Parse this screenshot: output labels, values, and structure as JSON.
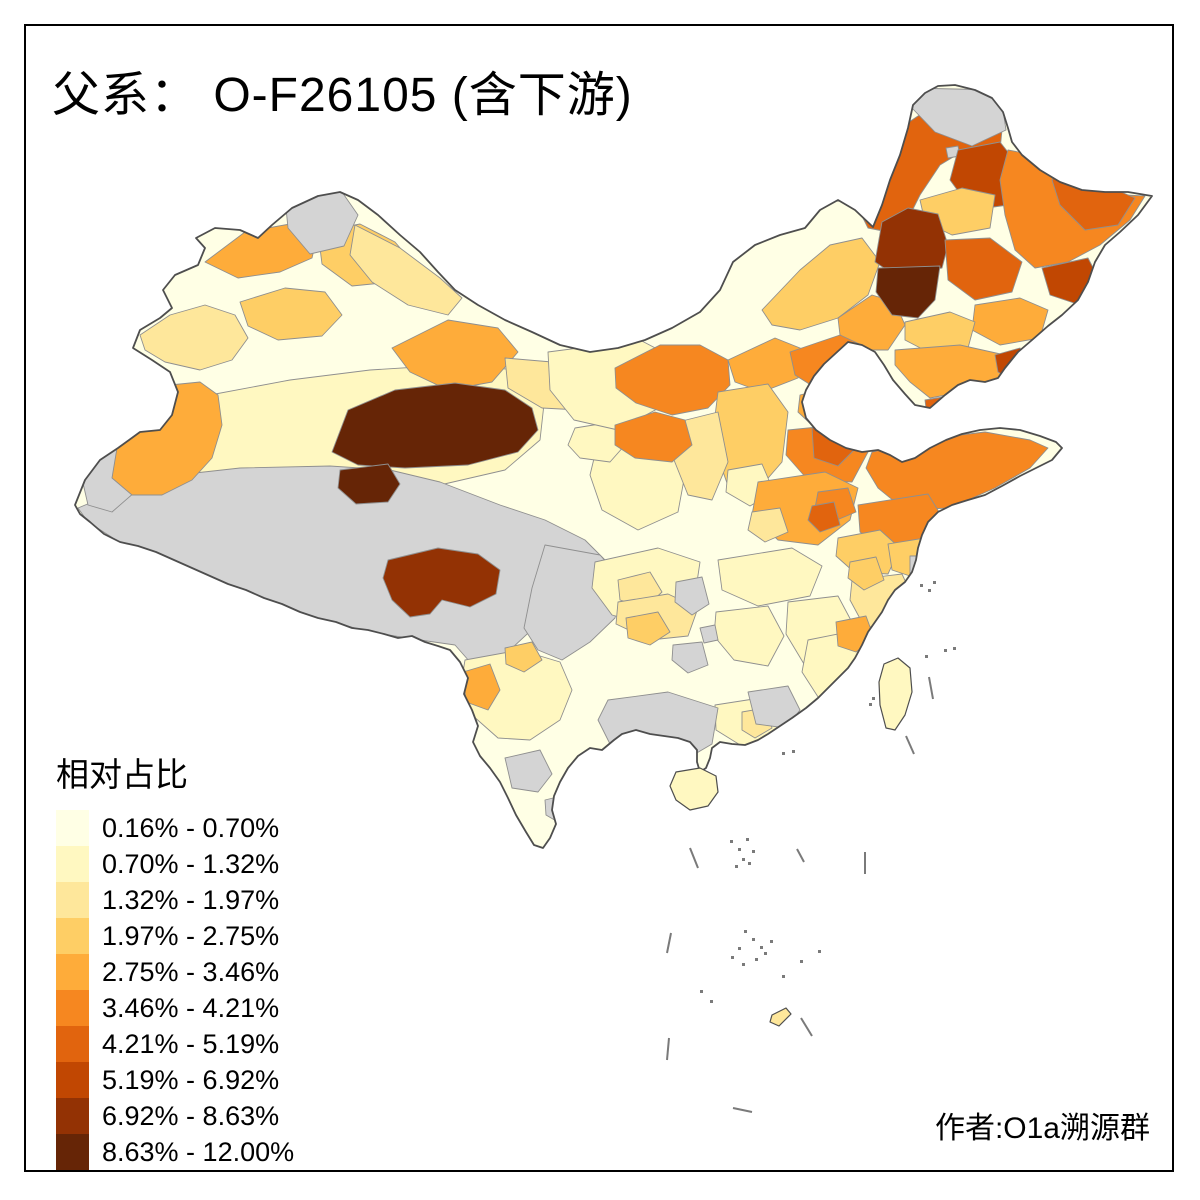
{
  "title": "父系： O-F26105 (含下游)",
  "attribution": "作者:O1a溯源群",
  "legend": {
    "title": "相对占比",
    "classes": [
      {
        "label": "0.16% - 0.70%",
        "color": "#FFFFE5"
      },
      {
        "label": "0.70% - 1.32%",
        "color": "#FFF8C1"
      },
      {
        "label": "1.32% - 1.97%",
        "color": "#FEE79B"
      },
      {
        "label": "1.97% - 2.75%",
        "color": "#FECE65"
      },
      {
        "label": "2.75% - 3.46%",
        "color": "#FEAC3A"
      },
      {
        "label": "3.46% - 4.21%",
        "color": "#F68720"
      },
      {
        "label": "4.21% - 5.19%",
        "color": "#E1640E"
      },
      {
        "label": "5.19% - 6.92%",
        "color": "#C14702"
      },
      {
        "label": "6.92% - 8.63%",
        "color": "#933204"
      },
      {
        "label": "8.63% - 12.00%",
        "color": "#662506"
      }
    ]
  },
  "map": {
    "nodata_color": "#D4D4D4",
    "region_border_color": "#8F8F8F",
    "outline_color": "#4E4E4E",
    "dash_color": "#7A7A7A",
    "sea_color": "#FFFFFF",
    "regions": {
      "china-base": 1,
      "tarim-basin": 2,
      "plateau-tibet-qinghai": 0,
      "west-sichuan": 0,
      "kashgar-west": 0,
      "hotan-kashgar": 5,
      "ili-valley": 3,
      "urumqi-changji": 4,
      "altay-west": 5,
      "altay-east": 4,
      "xinjiang-mongolia-border": 3,
      "altay-north-notch": 0,
      "jiuquan": 5,
      "gansu-corridor": 3,
      "gansu-east": 2,
      "xining-area": 2,
      "haixi": 10,
      "golog-blob": 10,
      "lhasa-shannan": 9,
      "alxa": 2,
      "ordos-bayannur": 6,
      "hohhot-ulanqab": 5,
      "xilingol": 4,
      "chifeng": 5,
      "hulunbuir": 7,
      "mohe-north": 0,
      "hulunbuir-spot": 0,
      "heihe": 8,
      "qiqihar-songnen": 4,
      "heilongjiang-east": 6,
      "heilongjiang-east-dark": 7,
      "xingan-dark": 9,
      "songyuan-dark": 10,
      "harbin": 7,
      "yanbian-dark": 8,
      "jilin-mid": 5,
      "jilin-pale": 4,
      "liaoning": 5,
      "dandong": 8,
      "liaoning-dark": 7,
      "hebei-north": 6,
      "beijing-tianjin": 5,
      "hebei-south": 6,
      "hebei-dark": 7,
      "shanxi": 4,
      "shanxi-south-pale": 2,
      "shaanxi-north": 3,
      "ningxia": 6,
      "shandong": 6,
      "shandong-dark": 7,
      "henan": 5,
      "henan-east": 6,
      "nanyang-pale": 3,
      "jiangsu-north": 6,
      "xuzhou-dark": 7,
      "anhui-mid": 4,
      "jiangsu-south": 4,
      "hubei": 2,
      "sichuan-basin": 2,
      "chengdu": 3,
      "zhejiang": 3,
      "zhejiang-coast": 4,
      "jiangxi": 2,
      "hunan": 2,
      "fujian": 2,
      "quanzhou": 5,
      "guizhou": 3,
      "guizhou-patch": 4,
      "yunnan": 2,
      "lincang": 5,
      "yunnan-mid": 4,
      "guangdong-east": 2,
      "pearl-delta": 3,
      "guangxi-grey": 0,
      "guangdong-north-grey": 0,
      "hunan-west-grey": 0,
      "chongqing-grey": 0,
      "guizhou-grey-dot": 0,
      "yunnan-south-grey1": 0,
      "yunnan-south-grey2": 0,
      "shanghai-grey": 0,
      "taiwan": 2,
      "hainan": 2,
      "paracel-island": 3
    }
  }
}
